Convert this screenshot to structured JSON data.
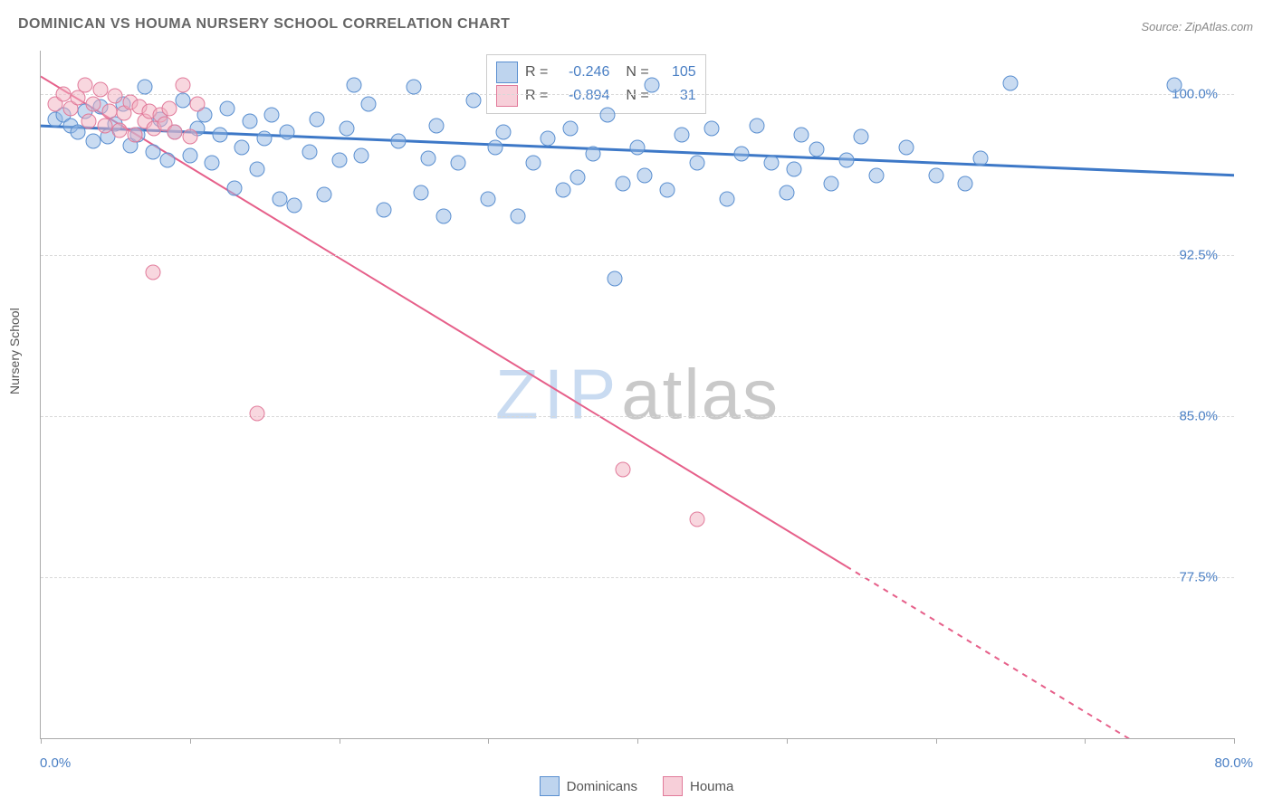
{
  "title": "DOMINICAN VS HOUMA NURSERY SCHOOL CORRELATION CHART",
  "source_label": "Source: ZipAtlas.com",
  "ylabel": "Nursery School",
  "watermark": {
    "left": "ZIP",
    "right": "atlas"
  },
  "chart": {
    "type": "scatter",
    "xlim": [
      0,
      80
    ],
    "ylim": [
      70,
      102
    ],
    "xtick_min_label": "0.0%",
    "xtick_max_label": "80.0%",
    "xtick_positions": [
      0,
      10,
      20,
      30,
      40,
      50,
      60,
      70,
      80
    ],
    "ytick_positions": [
      77.5,
      85.0,
      92.5,
      100.0
    ],
    "ytick_labels": [
      "77.5%",
      "85.0%",
      "92.5%",
      "100.0%"
    ],
    "grid_color": "#d8d8d8",
    "axis_color": "#aaaaaa",
    "background_color": "#ffffff",
    "marker_size": 15,
    "series": [
      {
        "name": "Dominicans",
        "color_fill": "rgba(147,184,227,0.5)",
        "color_stroke": "#5a8fd0",
        "R": "-0.246",
        "N": "105",
        "trend": {
          "x1": 0,
          "y1": 98.5,
          "x2": 80,
          "y2": 96.2,
          "stroke": "#3d78c7",
          "width": 3
        },
        "points": [
          [
            1,
            98.8
          ],
          [
            1.5,
            99.0
          ],
          [
            2,
            98.5
          ],
          [
            2.5,
            98.2
          ],
          [
            3,
            99.2
          ],
          [
            3.5,
            97.8
          ],
          [
            4,
            99.4
          ],
          [
            4.5,
            98.0
          ],
          [
            5,
            98.6
          ],
          [
            5.5,
            99.5
          ],
          [
            6,
            97.6
          ],
          [
            6.5,
            98.1
          ],
          [
            7,
            100.3
          ],
          [
            7.5,
            97.3
          ],
          [
            8,
            98.8
          ],
          [
            8.5,
            96.9
          ],
          [
            9,
            98.2
          ],
          [
            9.5,
            99.7
          ],
          [
            10,
            97.1
          ],
          [
            10.5,
            98.4
          ],
          [
            11,
            99.0
          ],
          [
            11.5,
            96.8
          ],
          [
            12,
            98.1
          ],
          [
            12.5,
            99.3
          ],
          [
            13,
            95.6
          ],
          [
            13.5,
            97.5
          ],
          [
            14,
            98.7
          ],
          [
            14.5,
            96.5
          ],
          [
            15,
            97.9
          ],
          [
            15.5,
            99.0
          ],
          [
            16,
            95.1
          ],
          [
            16.5,
            98.2
          ],
          [
            17,
            94.8
          ],
          [
            18,
            97.3
          ],
          [
            18.5,
            98.8
          ],
          [
            19,
            95.3
          ],
          [
            20,
            96.9
          ],
          [
            20.5,
            98.4
          ],
          [
            21,
            100.4
          ],
          [
            21.5,
            97.1
          ],
          [
            22,
            99.5
          ],
          [
            23,
            94.6
          ],
          [
            24,
            97.8
          ],
          [
            25,
            100.3
          ],
          [
            25.5,
            95.4
          ],
          [
            26,
            97.0
          ],
          [
            26.5,
            98.5
          ],
          [
            27,
            94.3
          ],
          [
            28,
            96.8
          ],
          [
            29,
            99.7
          ],
          [
            30,
            95.1
          ],
          [
            30.5,
            97.5
          ],
          [
            31,
            98.2
          ],
          [
            32,
            94.3
          ],
          [
            33,
            96.8
          ],
          [
            34,
            97.9
          ],
          [
            35,
            95.5
          ],
          [
            35.5,
            98.4
          ],
          [
            36,
            96.1
          ],
          [
            37,
            97.2
          ],
          [
            38,
            99.0
          ],
          [
            38.5,
            91.4
          ],
          [
            39,
            95.8
          ],
          [
            40,
            97.5
          ],
          [
            40.5,
            96.2
          ],
          [
            41,
            100.4
          ],
          [
            42,
            95.5
          ],
          [
            43,
            98.1
          ],
          [
            44,
            96.8
          ],
          [
            45,
            98.4
          ],
          [
            46,
            95.1
          ],
          [
            47,
            97.2
          ],
          [
            48,
            98.5
          ],
          [
            49,
            96.8
          ],
          [
            50,
            95.4
          ],
          [
            50.5,
            96.5
          ],
          [
            51,
            98.1
          ],
          [
            52,
            97.4
          ],
          [
            53,
            95.8
          ],
          [
            54,
            96.9
          ],
          [
            55,
            98.0
          ],
          [
            56,
            96.2
          ],
          [
            58,
            97.5
          ],
          [
            60,
            96.2
          ],
          [
            62,
            95.8
          ],
          [
            63,
            97.0
          ],
          [
            65,
            100.5
          ],
          [
            76,
            100.4
          ]
        ]
      },
      {
        "name": "Houma",
        "color_fill": "rgba(241,175,192,0.5)",
        "color_stroke": "#e17a9a",
        "R": "-0.894",
        "N": "31",
        "trend": {
          "x1": 0,
          "y1": 100.8,
          "x2": 54,
          "y2": 78.0,
          "stroke": "#e6608a",
          "width": 2,
          "dash_from_x": 54,
          "dash_x2": 80,
          "dash_y2": 67.0
        },
        "points": [
          [
            1,
            99.5
          ],
          [
            1.5,
            100.0
          ],
          [
            2,
            99.3
          ],
          [
            2.5,
            99.8
          ],
          [
            3,
            100.4
          ],
          [
            3.2,
            98.7
          ],
          [
            3.5,
            99.5
          ],
          [
            4,
            100.2
          ],
          [
            4.3,
            98.5
          ],
          [
            4.6,
            99.2
          ],
          [
            5,
            99.9
          ],
          [
            5.3,
            98.3
          ],
          [
            5.6,
            99.1
          ],
          [
            6,
            99.6
          ],
          [
            6.3,
            98.1
          ],
          [
            6.6,
            99.4
          ],
          [
            7,
            98.7
          ],
          [
            7.3,
            99.2
          ],
          [
            7.6,
            98.4
          ],
          [
            8,
            99.0
          ],
          [
            8.3,
            98.6
          ],
          [
            8.6,
            99.3
          ],
          [
            9,
            98.2
          ],
          [
            9.5,
            100.4
          ],
          [
            10,
            98.0
          ],
          [
            10.5,
            99.5
          ],
          [
            7.5,
            91.7
          ],
          [
            14.5,
            85.1
          ],
          [
            39,
            82.5
          ],
          [
            44,
            80.2
          ]
        ]
      }
    ]
  },
  "legend_corr": {
    "rows": [
      {
        "swatch": "blue",
        "R_label": "R =",
        "R_val": "-0.246",
        "N_label": "N =",
        "N_val": "105"
      },
      {
        "swatch": "pink",
        "R_label": "R =",
        "R_val": "-0.894",
        "N_label": "N =",
        "N_val": "  31"
      }
    ]
  },
  "legend_bottom": {
    "items": [
      {
        "swatch": "blue",
        "label": "Dominicans"
      },
      {
        "swatch": "pink",
        "label": "Houma"
      }
    ]
  }
}
